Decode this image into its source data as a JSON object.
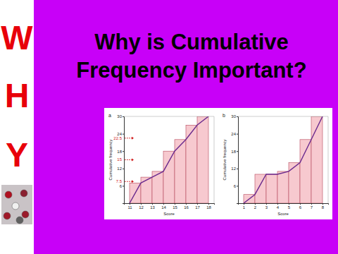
{
  "header": {
    "title": [
      "Why is Cumulative",
      "Frequency Important?"
    ],
    "side_letters": [
      "W",
      "H",
      "Y"
    ]
  },
  "chart_data": [
    {
      "type": "bar",
      "label": "a",
      "x_label": "Score",
      "y_label": "Cumulative frequency",
      "x": [
        11,
        12,
        13,
        14,
        15,
        16,
        17,
        18
      ],
      "series": [
        {
          "type": "bar",
          "color": "#f7c9cf",
          "values": [
            0,
            7,
            9,
            11,
            18,
            22,
            27,
            30
          ]
        },
        {
          "type": "line",
          "color": "#6b2a8e",
          "values": [
            0,
            7,
            9,
            11,
            18,
            22,
            27,
            30
          ]
        }
      ],
      "xlim": [
        10.5,
        18.5
      ],
      "xticks": [
        11,
        12,
        13,
        14,
        15,
        16,
        17,
        18
      ],
      "ylim": [
        0,
        30
      ],
      "yticks": [
        6,
        12,
        18,
        24,
        30
      ],
      "annotations": [
        22.5,
        15,
        7.5
      ],
      "grid": false
    },
    {
      "type": "bar",
      "label": "b",
      "x_label": "Score",
      "y_label": "Cumulative frequency",
      "x": [
        1,
        2,
        3,
        4,
        5,
        6,
        7,
        8
      ],
      "series": [
        {
          "type": "bar",
          "color": "#f7c9cf",
          "values": [
            0,
            3,
            10,
            10,
            11,
            14,
            22,
            30
          ]
        },
        {
          "type": "line",
          "color": "#6b2a8e",
          "values": [
            0,
            3,
            10,
            10,
            11,
            14,
            22,
            30
          ]
        }
      ],
      "xlim": [
        0.5,
        8.5
      ],
      "xticks": [
        1,
        2,
        3,
        4,
        5,
        6,
        7,
        8
      ],
      "ylim": [
        0,
        30
      ],
      "yticks": [
        6,
        12,
        18,
        24,
        30
      ],
      "grid": false
    }
  ]
}
